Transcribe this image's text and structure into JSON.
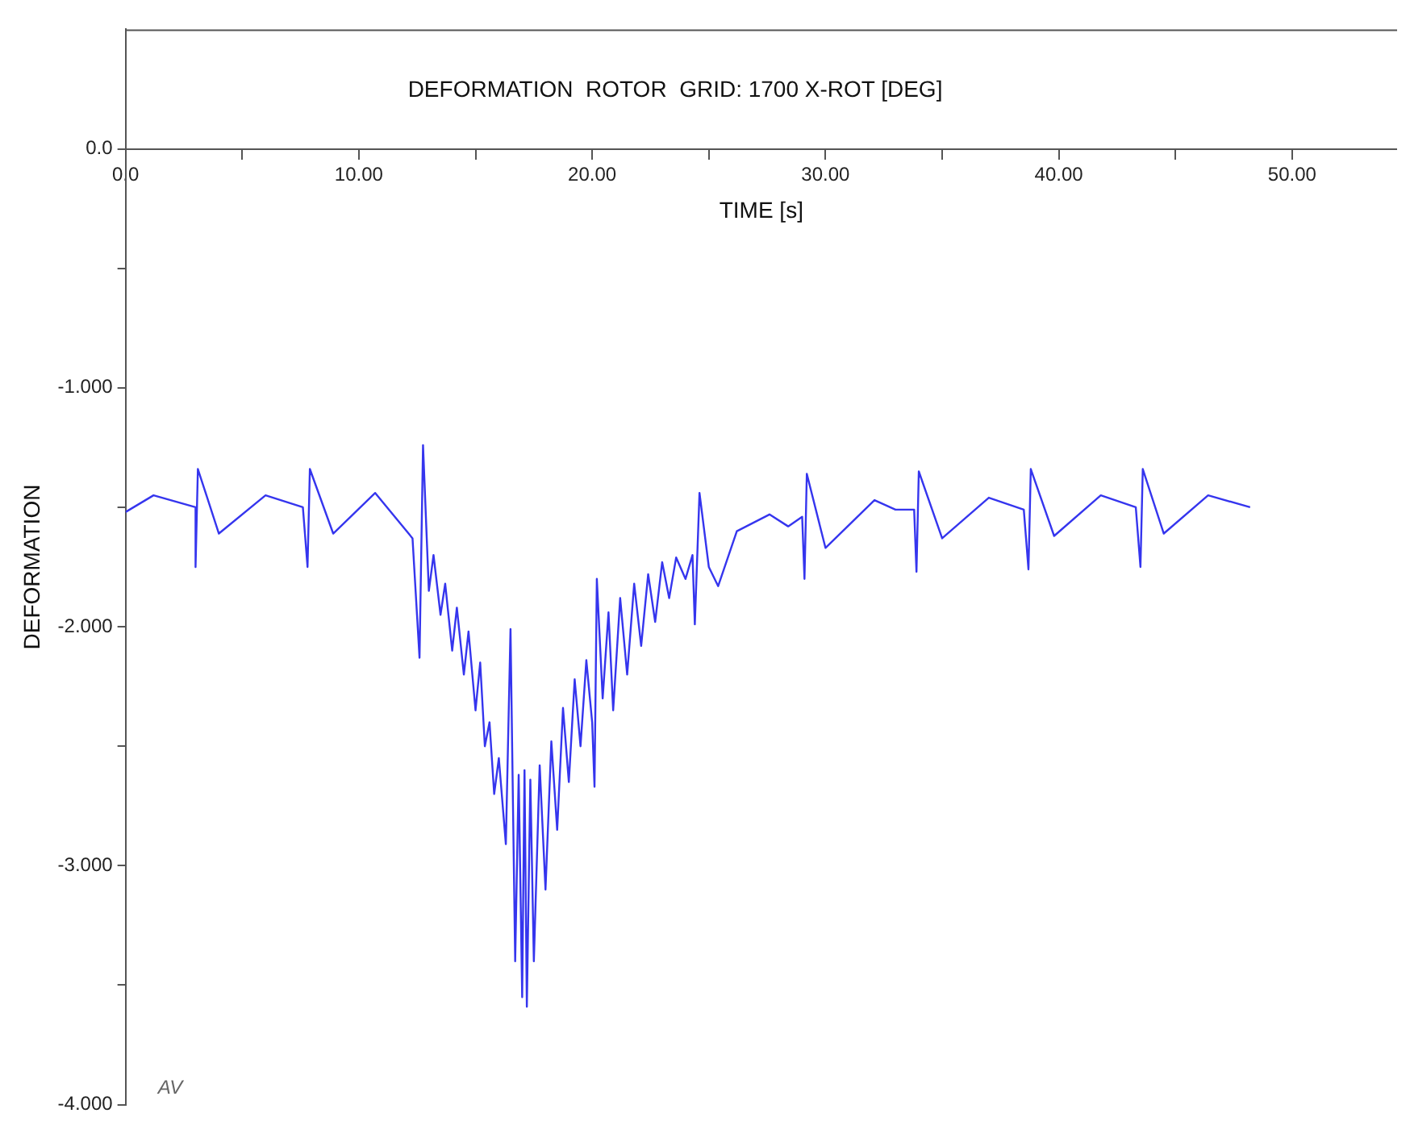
{
  "chart_data": {
    "type": "line",
    "title": "DEFORMATION  ROTOR  GRID: 1700 X-ROT [DEG]",
    "xlabel": "TIME [s]",
    "ylabel": "DEFORMATION",
    "marker": "none",
    "annotations": [
      "AV"
    ],
    "xlim": [
      0,
      54.5
    ],
    "ylim": [
      -4,
      0.5
    ],
    "xticks": [
      {
        "value": 0,
        "label": "0.0"
      },
      {
        "value": 5,
        "label": null
      },
      {
        "value": 10,
        "label": "10.00"
      },
      {
        "value": 15,
        "label": null
      },
      {
        "value": 20,
        "label": "20.00"
      },
      {
        "value": 25,
        "label": null
      },
      {
        "value": 30,
        "label": "30.00"
      },
      {
        "value": 35,
        "label": null
      },
      {
        "value": 40,
        "label": "40.00"
      },
      {
        "value": 45,
        "label": null
      },
      {
        "value": 50,
        "label": "50.00"
      }
    ],
    "yticks": [
      {
        "value": 0,
        "label": "0.0"
      },
      {
        "value": -0.5,
        "label": null
      },
      {
        "value": -1,
        "label": "-1.000"
      },
      {
        "value": -1.5,
        "label": null
      },
      {
        "value": -2,
        "label": "-2.000"
      },
      {
        "value": -2.5,
        "label": null
      },
      {
        "value": -3,
        "label": "-3.000"
      },
      {
        "value": -3.5,
        "label": null
      },
      {
        "value": -4,
        "label": "-4.000"
      }
    ],
    "series": [
      {
        "color": "#3535ee",
        "x": [
          0,
          1.2,
          3.0,
          3.0,
          3.1,
          4.0,
          6.0,
          7.6,
          7.8,
          7.9,
          8.9,
          10.7,
          12.3,
          12.6,
          12.75,
          13.0,
          13.2,
          13.5,
          13.7,
          14.0,
          14.2,
          14.5,
          14.7,
          15.0,
          15.2,
          15.4,
          15.6,
          15.8,
          16.0,
          16.3,
          16.5,
          16.7,
          16.85,
          17.0,
          17.1,
          17.2,
          17.35,
          17.5,
          17.75,
          18.0,
          18.25,
          18.5,
          18.75,
          19.0,
          19.25,
          19.5,
          19.75,
          20.0,
          20.1,
          20.2,
          20.45,
          20.7,
          20.9,
          21.2,
          21.5,
          21.8,
          22.1,
          22.4,
          22.7,
          23.0,
          23.3,
          23.6,
          24.0,
          24.3,
          24.4,
          24.6,
          25.0,
          25.4,
          26.2,
          27.6,
          28.4,
          29.0,
          29.1,
          29.2,
          30.0,
          32.1,
          33.0,
          33.8,
          33.9,
          34.0,
          35.0,
          37.0,
          38.5,
          38.7,
          38.8,
          39.8,
          41.8,
          43.3,
          43.5,
          43.6,
          44.5,
          46.4,
          48.2
        ],
        "values": [
          -1.52,
          -1.45,
          -1.5,
          -1.75,
          -1.34,
          -1.61,
          -1.45,
          -1.5,
          -1.75,
          -1.34,
          -1.61,
          -1.44,
          -1.63,
          -2.13,
          -1.24,
          -1.85,
          -1.7,
          -1.95,
          -1.82,
          -2.1,
          -1.92,
          -2.2,
          -2.02,
          -2.35,
          -2.15,
          -2.5,
          -2.4,
          -2.7,
          -2.55,
          -2.91,
          -2.01,
          -3.4,
          -2.62,
          -3.55,
          -2.6,
          -3.59,
          -2.64,
          -3.4,
          -2.58,
          -3.1,
          -2.48,
          -2.85,
          -2.34,
          -2.65,
          -2.22,
          -2.5,
          -2.14,
          -2.4,
          -2.67,
          -1.8,
          -2.3,
          -1.94,
          -2.35,
          -1.88,
          -2.2,
          -1.82,
          -2.08,
          -1.78,
          -1.98,
          -1.73,
          -1.88,
          -1.71,
          -1.8,
          -1.7,
          -1.99,
          -1.44,
          -1.75,
          -1.83,
          -1.6,
          -1.53,
          -1.58,
          -1.54,
          -1.8,
          -1.36,
          -1.67,
          -1.47,
          -1.51,
          -1.51,
          -1.77,
          -1.35,
          -1.63,
          -1.46,
          -1.51,
          -1.76,
          -1.34,
          -1.62,
          -1.45,
          -1.5,
          -1.75,
          -1.34,
          -1.61,
          -1.45,
          -1.5
        ]
      }
    ]
  }
}
